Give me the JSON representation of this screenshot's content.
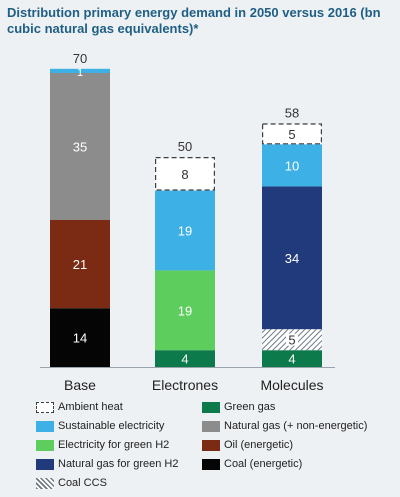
{
  "title": "Distribution primary energy demand in 2050 versus 2016 (bn cubic natural gas equivalents)*",
  "chart_data": {
    "type": "bar",
    "stacked": true,
    "categories": [
      "Base",
      "Electrones",
      "Molecules"
    ],
    "totals": [
      70,
      50,
      58
    ],
    "series": [
      {
        "name": "Green gas",
        "color": "#0c7a4b",
        "values": [
          0,
          4,
          4
        ],
        "label_color": "#ffffff"
      },
      {
        "name": "Coal CCS",
        "color": "hatch",
        "values": [
          0,
          0,
          5
        ],
        "label_color": "#ffffff"
      },
      {
        "name": "Coal (energetic)",
        "color": "#050505",
        "values": [
          14,
          0,
          0
        ],
        "label_color": "#ffffff"
      },
      {
        "name": "Oil (energetic)",
        "color": "#7b2a14",
        "values": [
          21,
          0,
          0
        ],
        "label_color": "#ffffff"
      },
      {
        "name": "Electricity for green H2",
        "color": "#5dcd5d",
        "values": [
          0,
          19,
          0
        ],
        "label_color": "#ffffff"
      },
      {
        "name": "Natural gas for green H2",
        "color": "#213a7c",
        "values": [
          0,
          0,
          34
        ],
        "label_color": "#ffffff"
      },
      {
        "name": "Natural gas (+ non-energetic)",
        "color": "#8c8c8c",
        "values": [
          35,
          0,
          0
        ],
        "label_color": "#ffffff"
      },
      {
        "name": "Sustainable electricity",
        "color": "#3db0e6",
        "values": [
          1,
          19,
          10
        ],
        "label_color": "#ffffff"
      },
      {
        "name": "Ambient heat",
        "color": "dashed",
        "values": [
          0,
          8,
          5
        ],
        "label_color": "#333333"
      }
    ],
    "legend_order": [
      "Ambient heat",
      "Green gas",
      "Sustainable electricity",
      "Natural gas (+ non-energetic)",
      "Electricity for green H2",
      "Oil (energetic)",
      "Natural gas for green H2",
      "Coal (energetic)",
      "Coal CCS"
    ],
    "ylim": [
      0,
      72
    ],
    "legend_position": "bottom"
  }
}
